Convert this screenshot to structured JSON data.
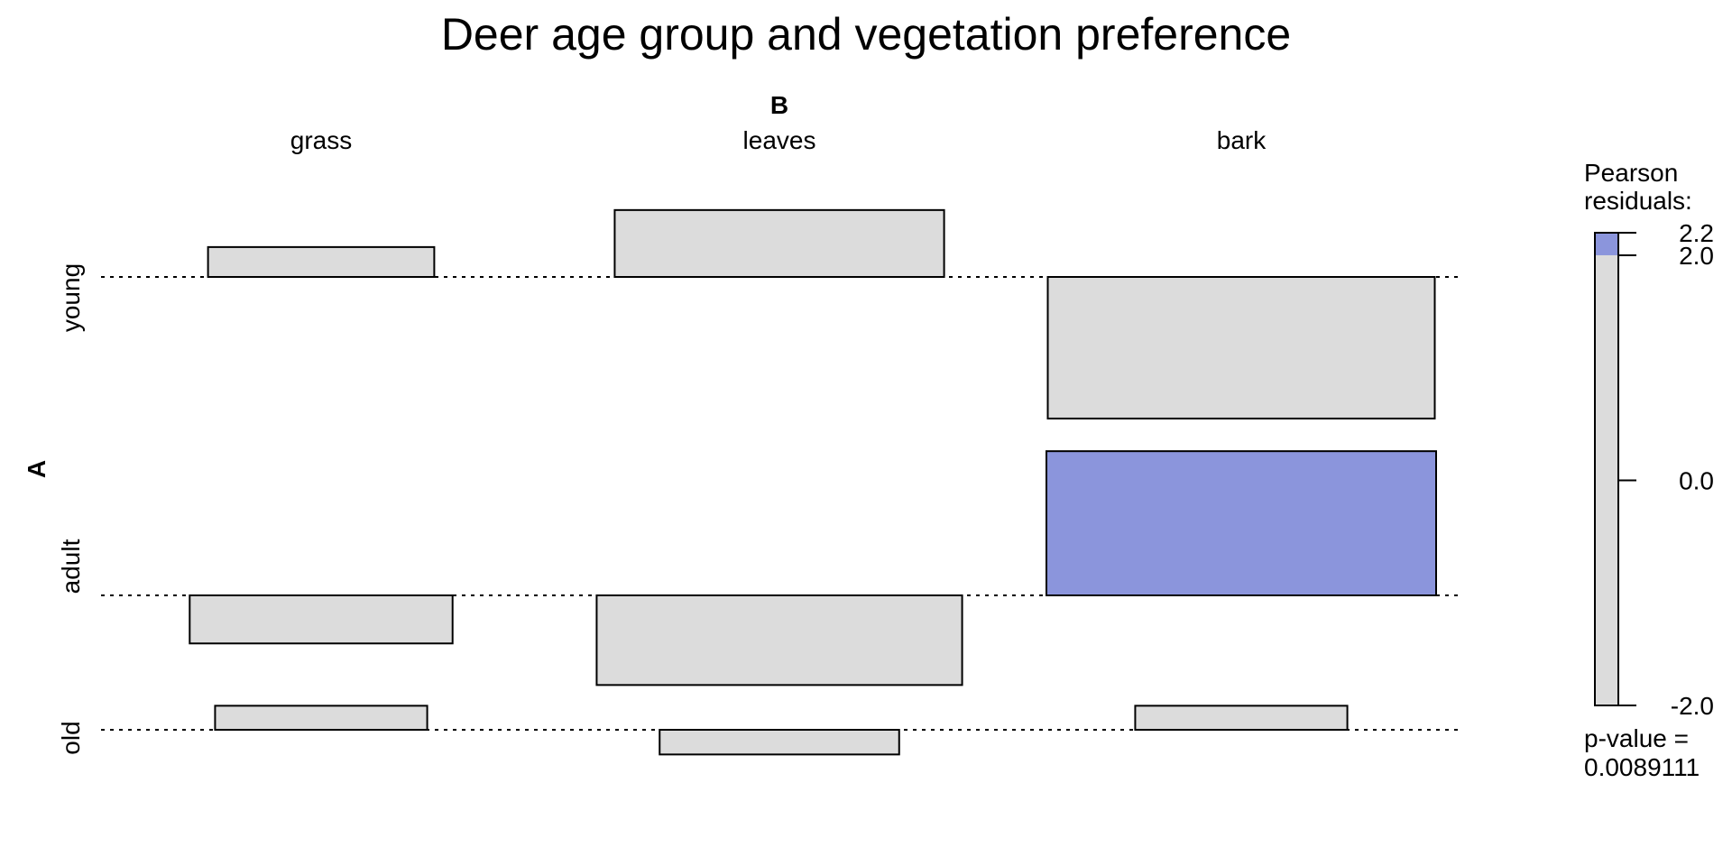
{
  "chart_data": {
    "type": "association plot",
    "title": "Deer age group and vegetation preference",
    "column_variable": "B",
    "row_variable": "A",
    "columns": [
      "grass",
      "leaves",
      "bark"
    ],
    "rows": [
      "young",
      "adult",
      "old"
    ],
    "residuals": [
      [
        0.46,
        1.03,
        -2.18
      ],
      [
        -0.74,
        -1.38,
        2.22
      ],
      [
        0.37,
        -0.38,
        0.37
      ]
    ],
    "legend": {
      "title_line1": "Pearson",
      "title_line2": "residuals:",
      "ticks": [
        "2.2",
        "2.0",
        "0.0",
        "-2.0"
      ],
      "tick_values": [
        2.2,
        2.0,
        0.0,
        -2.0
      ],
      "range": [
        -2.0,
        2.2
      ],
      "shade_threshold": 2.0
    },
    "pvalue_line1": "p-value =",
    "pvalue_line2": "0.0089111",
    "colors": {
      "neutral_fill": "#dcdcdc",
      "positive_shade": "#8b95dc",
      "outline": "#000000"
    }
  }
}
